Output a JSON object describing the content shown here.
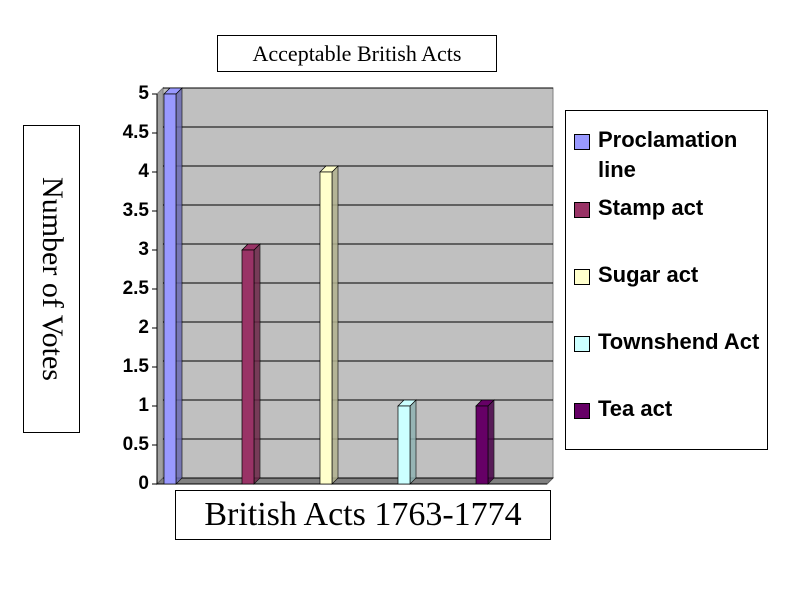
{
  "chart_data": {
    "type": "bar",
    "title": "Acceptable British Acts",
    "x_label": "British Acts 1763-1774",
    "y_label": "Number of Votes",
    "categories": [
      null
    ],
    "series": [
      {
        "name": "Proclamation line",
        "color": "#9999ff",
        "values": [
          5
        ]
      },
      {
        "name": "Stamp act",
        "color": "#993366",
        "values": [
          3
        ]
      },
      {
        "name": "Sugar act",
        "color": "#ffffcc",
        "values": [
          4
        ]
      },
      {
        "name": "Townshend Act",
        "color": "#ccffff",
        "values": [
          1
        ]
      },
      {
        "name": "Tea act",
        "color": "#660066",
        "values": [
          1
        ]
      }
    ],
    "ylim": [
      0,
      5
    ],
    "yticks": [
      0,
      0.5,
      1,
      1.5,
      2,
      2.5,
      3,
      3.5,
      4,
      4.5,
      5
    ],
    "grid": true,
    "legend": "right"
  }
}
